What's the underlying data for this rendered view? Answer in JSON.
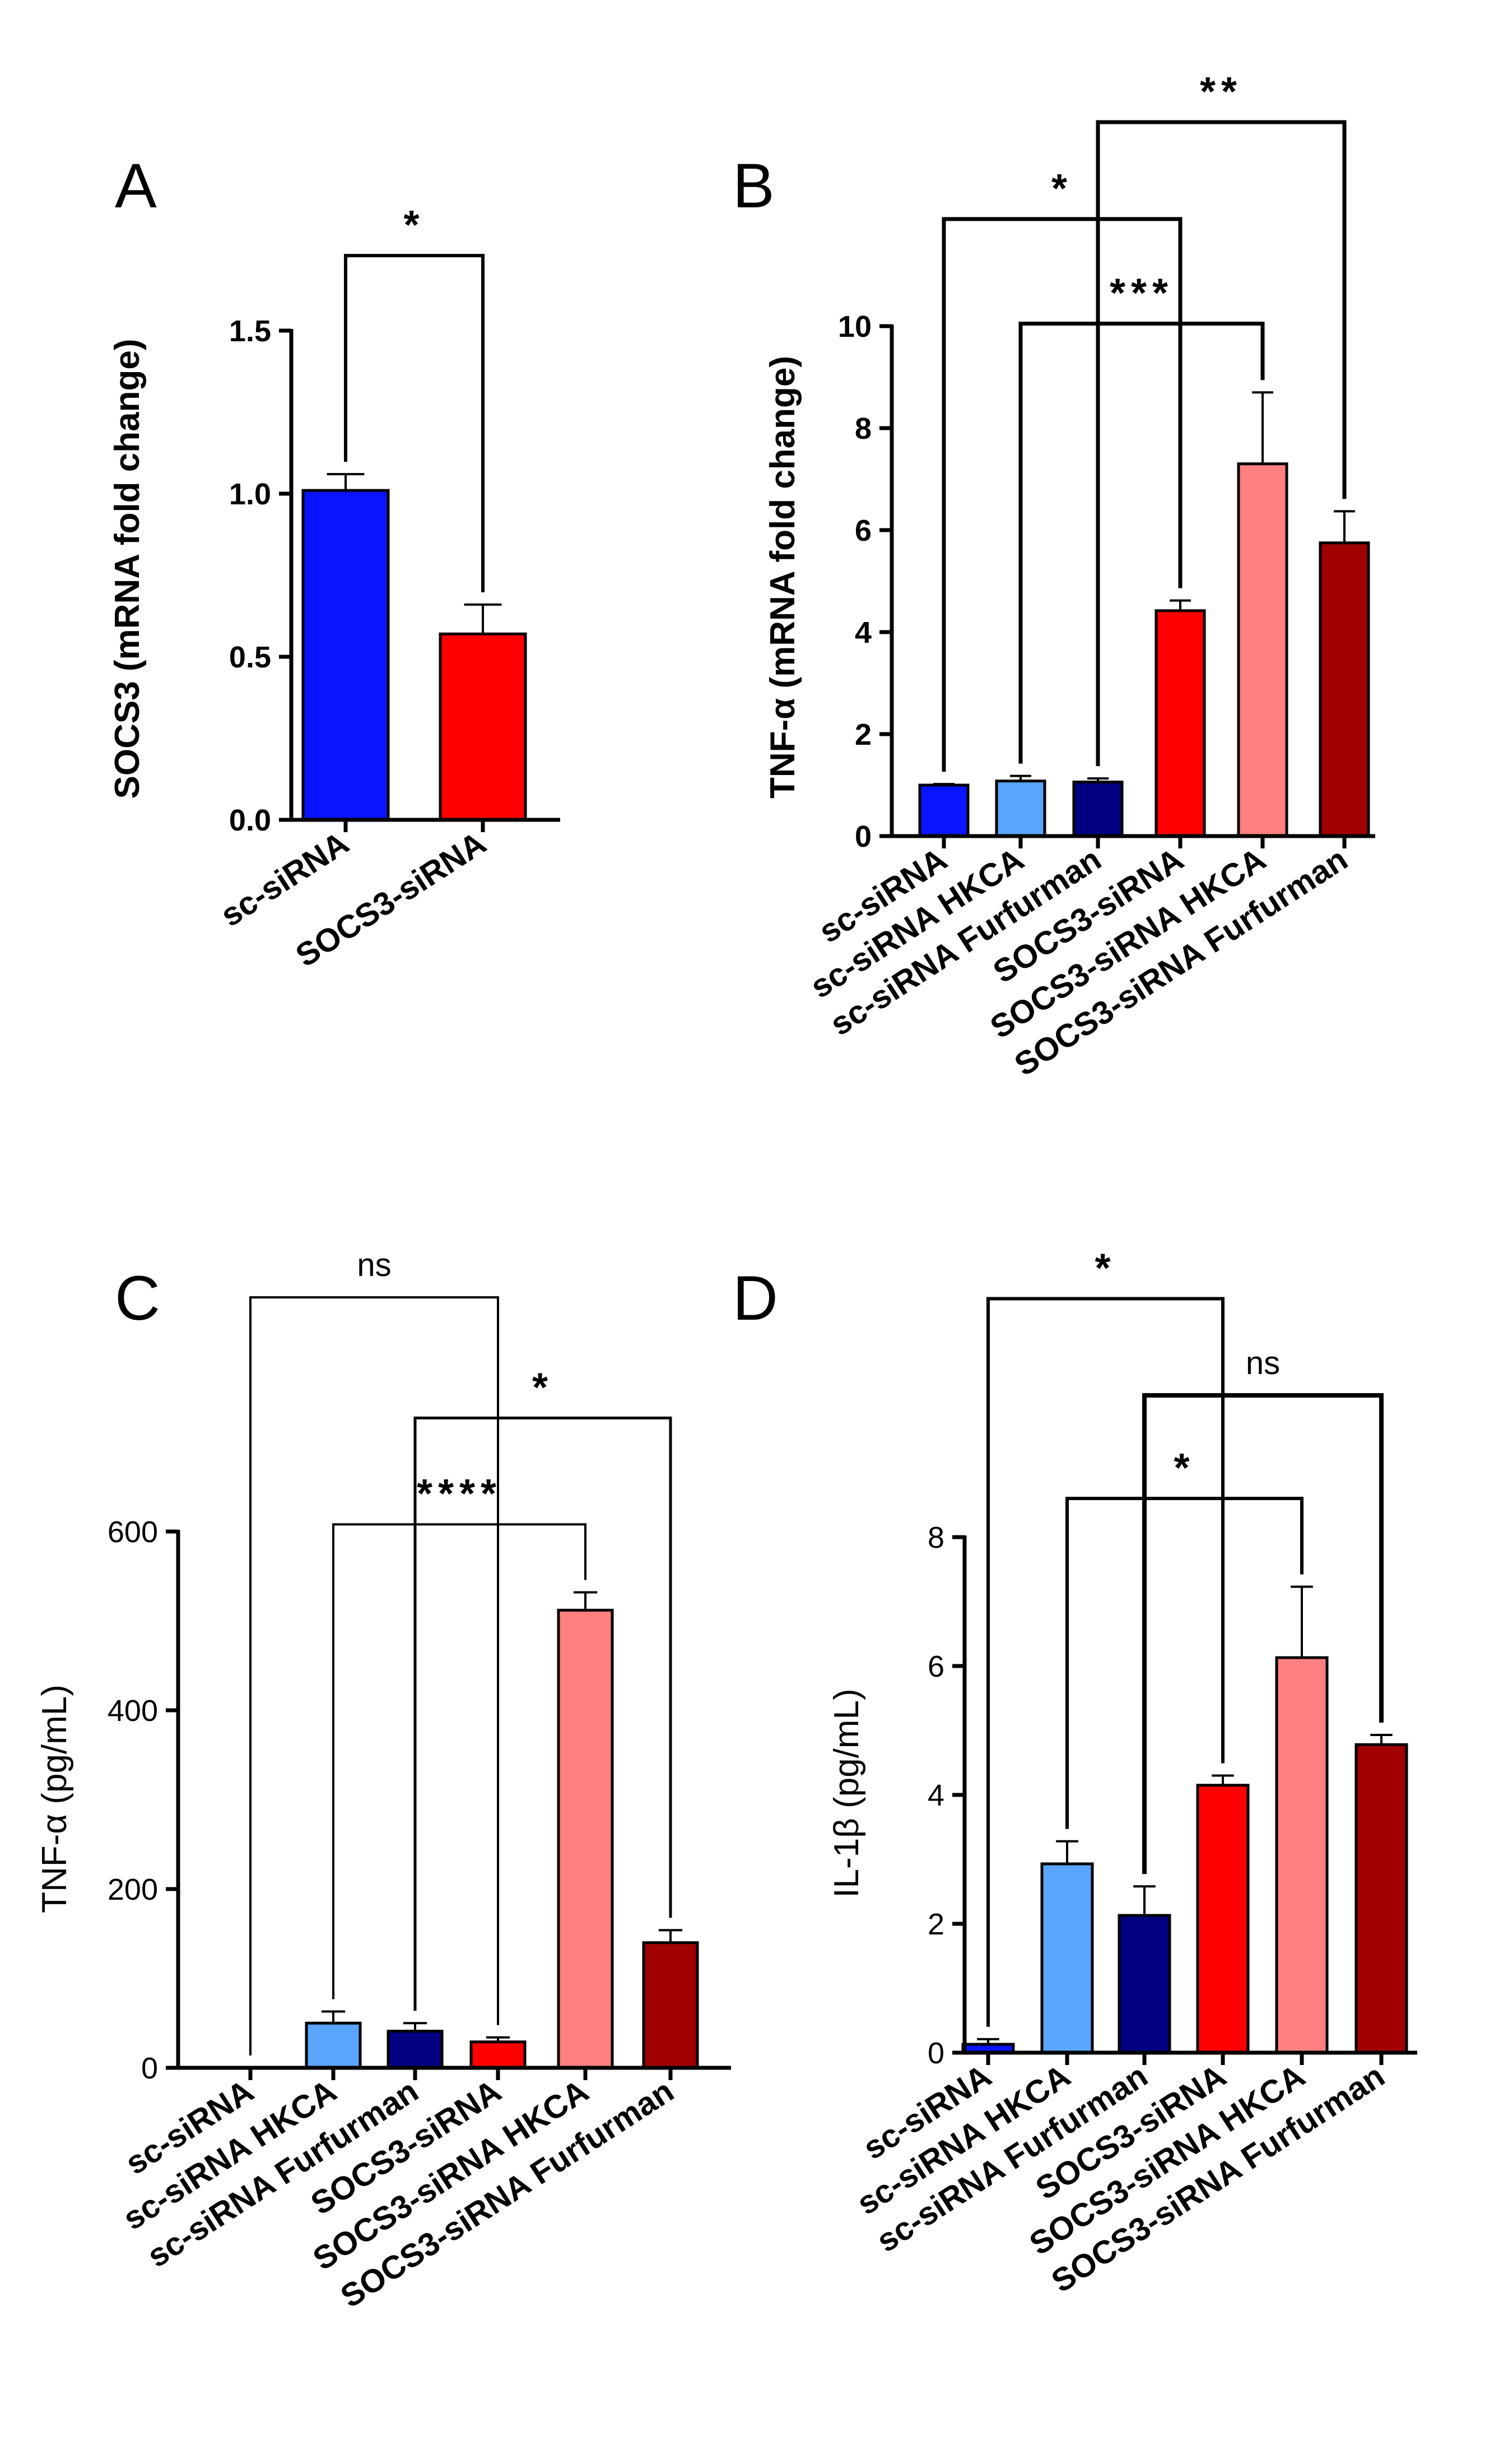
{
  "chart_data": [
    {
      "panel": "A",
      "type": "bar",
      "categories": [
        "sc-siRNA",
        "SOCS3-siRNA"
      ],
      "values": [
        1.01,
        0.57
      ],
      "errors": [
        0.05,
        0.09
      ],
      "colors": [
        "#0a14ff",
        "#ff0000"
      ],
      "ylabel": "SOCS3 (mRNA fold change)",
      "ylim": [
        0,
        1.5
      ],
      "yticks": [
        "0.0",
        "0.5",
        "1.0",
        "1.5"
      ],
      "ytick_values": [
        0,
        0.5,
        1.0,
        1.5
      ],
      "comparisons": [
        {
          "from": 0,
          "to": 1,
          "label": "*",
          "y": 1.73
        }
      ]
    },
    {
      "panel": "B",
      "type": "bar",
      "categories": [
        "sc-siRNA",
        "sc-siRNA HKCA",
        "sc-siRNA Furfurman",
        "SOCS3-siRNA",
        "SOCS3-siRNA HKCA",
        "SOCS3-siRNA Furfurman"
      ],
      "values": [
        1.0,
        1.08,
        1.06,
        4.42,
        7.3,
        5.75
      ],
      "errors": [
        0.02,
        0.1,
        0.07,
        0.2,
        1.4,
        0.62
      ],
      "colors": [
        "#0a14ff",
        "#5aa5ff",
        "#000080",
        "#ff0000",
        "#ff8080",
        "#a00000"
      ],
      "ylabel": "TNF-α (mRNA fold change)",
      "ylim": [
        0,
        10
      ],
      "yticks": [
        "0",
        "2",
        "4",
        "6",
        "8",
        "10"
      ],
      "ytick_values": [
        0,
        2,
        4,
        6,
        8,
        10
      ],
      "comparisons": [
        {
          "from": 0,
          "to": 3,
          "label": "*",
          "y": 12.1
        },
        {
          "from": 1,
          "to": 4,
          "label": "***",
          "y": 10.05
        },
        {
          "from": 2,
          "to": 5,
          "label": "**",
          "y": 14.0
        }
      ]
    },
    {
      "panel": "C",
      "type": "bar",
      "categories": [
        "sc-siRNA",
        "sc-siRNA HKCA",
        "sc-siRNA Furfurman",
        "SOCS3-siRNA",
        "SOCS3-siRNA HKCA",
        "SOCS3-siRNA Furfurman"
      ],
      "values": [
        0,
        50,
        41,
        29,
        512,
        140
      ],
      "errors": [
        0,
        13,
        9,
        5,
        20,
        14
      ],
      "colors": [
        "#0a14ff",
        "#5aa5ff",
        "#000080",
        "#ff0000",
        "#ff8080",
        "#a00000"
      ],
      "ylabel": "TNF-α (pg/mL)",
      "ylim": [
        0,
        600
      ],
      "yticks": [
        "0",
        "200",
        "400",
        "600"
      ],
      "ytick_values": [
        0,
        200,
        400,
        600
      ],
      "comparisons": [
        {
          "from": 0,
          "to": 3,
          "label": "ns",
          "y": 862
        },
        {
          "from": 1,
          "to": 4,
          "label": "****",
          "y": 608
        },
        {
          "from": 2,
          "to": 5,
          "label": "*",
          "y": 727
        }
      ]
    },
    {
      "panel": "D",
      "type": "bar",
      "categories": [
        "sc-siRNA",
        "sc-siRNA HKCA",
        "sc-siRNA Furfurman",
        "SOCS3-siRNA",
        "SOCS3-siRNA HKCA",
        "SOCS3-siRNA Furfurman"
      ],
      "values": [
        0.13,
        2.93,
        2.13,
        4.15,
        6.13,
        4.78
      ],
      "errors": [
        0.08,
        0.35,
        0.45,
        0.15,
        1.1,
        0.15
      ],
      "colors": [
        "#0a14ff",
        "#5aa5ff",
        "#000080",
        "#ff0000",
        "#ff8080",
        "#a00000"
      ],
      "ylabel": "IL-1β (pg/mL)",
      "ylim": [
        0,
        8
      ],
      "yticks": [
        "0",
        "2",
        "4",
        "6",
        "8"
      ],
      "ytick_values": [
        0,
        2,
        4,
        6,
        8
      ],
      "comparisons": [
        {
          "from": 0,
          "to": 3,
          "label": "*",
          "y": 11.7
        },
        {
          "from": 1,
          "to": 4,
          "label": "*",
          "y": 8.6
        },
        {
          "from": 2,
          "to": 5,
          "label": "ns",
          "y": 10.2
        }
      ]
    }
  ]
}
